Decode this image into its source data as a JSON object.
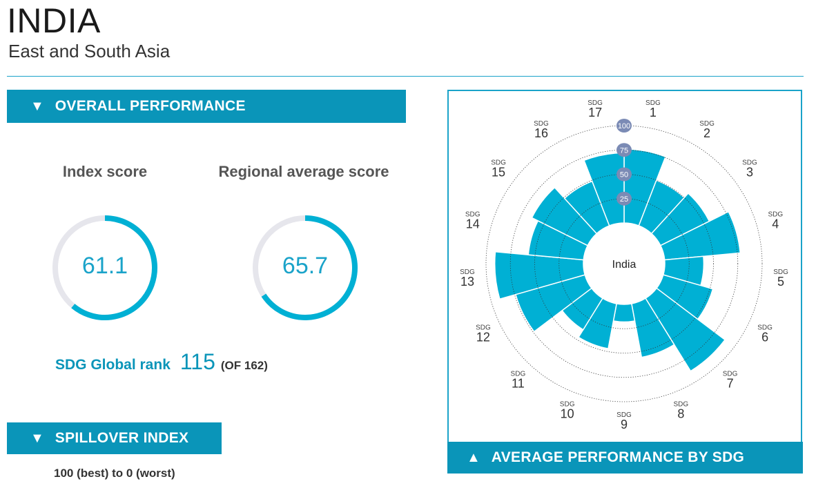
{
  "header": {
    "country": "INDIA",
    "region": "East and South Asia"
  },
  "overall": {
    "banner_label": "OVERALL PERFORMANCE",
    "index_score_label": "Index score",
    "index_score": "61.1",
    "regional_label": "Regional average score",
    "regional_score": "65.7",
    "rank_label": "SDG Global rank",
    "rank_value": "115",
    "rank_of": "(OF 162)"
  },
  "spillover": {
    "banner_label": "SPILLOVER INDEX",
    "scale_note": "100 (best) to 0 (worst)"
  },
  "colors": {
    "accent": "#0a95b9",
    "bar": "#00b0d4",
    "gauge_track": "#e6e6ec",
    "ring_badge": "#7b8bb5"
  },
  "chart_data": [
    {
      "type": "gauge",
      "label": "Index score",
      "value": 61.1,
      "range": [
        0,
        100
      ]
    },
    {
      "type": "gauge",
      "label": "Regional average score",
      "value": 65.7,
      "range": [
        0,
        100
      ]
    },
    {
      "type": "bar",
      "subtype": "polar",
      "title": "AVERAGE PERFORMANCE BY SDG",
      "center_label": "India",
      "sdg_prefix": "SDG",
      "categories": [
        "1",
        "2",
        "3",
        "4",
        "5",
        "6",
        "7",
        "8",
        "9",
        "10",
        "11",
        "12",
        "13",
        "14",
        "15",
        "16",
        "17"
      ],
      "values": [
        76,
        50,
        56,
        78,
        40,
        53,
        88,
        56,
        18,
        47,
        38,
        74,
        91,
        57,
        64,
        49,
        72
      ],
      "ring_ticks": [
        "25",
        "50",
        "75",
        "100"
      ],
      "ylim": [
        0,
        100
      ]
    }
  ]
}
